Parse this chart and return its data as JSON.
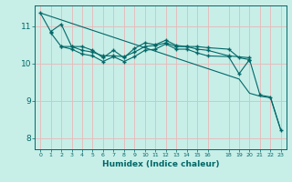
{
  "title": "",
  "xlabel": "Humidex (Indice chaleur)",
  "bg_color": "#c8eee8",
  "line_color": "#006868",
  "grid_color": "#e8b8b8",
  "ylim": [
    7.7,
    11.55
  ],
  "xlim": [
    -0.5,
    23.5
  ],
  "yticks": [
    8,
    9,
    10,
    11
  ],
  "xticks": [
    0,
    1,
    2,
    3,
    4,
    5,
    6,
    7,
    8,
    9,
    10,
    11,
    12,
    13,
    14,
    15,
    16,
    18,
    19,
    20,
    21,
    22,
    23
  ],
  "line1_x": [
    0,
    1,
    2,
    3,
    4,
    5,
    6,
    7,
    8,
    9,
    10,
    11,
    12,
    13,
    14,
    15,
    16,
    18,
    19,
    20,
    21,
    22,
    23
  ],
  "line1_y": [
    11.35,
    10.85,
    11.05,
    10.45,
    10.45,
    10.35,
    10.15,
    10.35,
    10.15,
    10.4,
    10.55,
    10.5,
    10.62,
    10.48,
    10.45,
    10.45,
    10.42,
    10.38,
    10.15,
    10.1,
    9.15,
    9.1,
    8.2
  ],
  "line2_x": [
    1,
    2,
    3,
    4,
    5,
    6,
    7,
    8,
    9,
    10,
    11,
    12,
    13,
    14,
    15,
    16,
    18,
    20
  ],
  "line2_y": [
    10.82,
    10.45,
    10.45,
    10.35,
    10.3,
    10.2,
    10.2,
    10.18,
    10.3,
    10.45,
    10.48,
    10.55,
    10.45,
    10.45,
    10.38,
    10.35,
    10.2,
    10.15
  ],
  "line3_x": [
    2,
    3,
    4,
    5,
    6,
    7,
    8,
    9,
    10,
    11,
    12,
    13,
    14,
    15,
    16,
    18,
    19,
    20
  ],
  "line3_y": [
    10.45,
    10.38,
    10.25,
    10.2,
    10.05,
    10.18,
    10.05,
    10.18,
    10.35,
    10.38,
    10.52,
    10.38,
    10.38,
    10.28,
    10.2,
    10.18,
    9.72,
    10.1
  ],
  "line4_x": [
    0,
    19,
    20,
    21,
    22,
    23
  ],
  "line4_y": [
    11.35,
    9.58,
    9.2,
    9.12,
    9.08,
    8.2
  ]
}
